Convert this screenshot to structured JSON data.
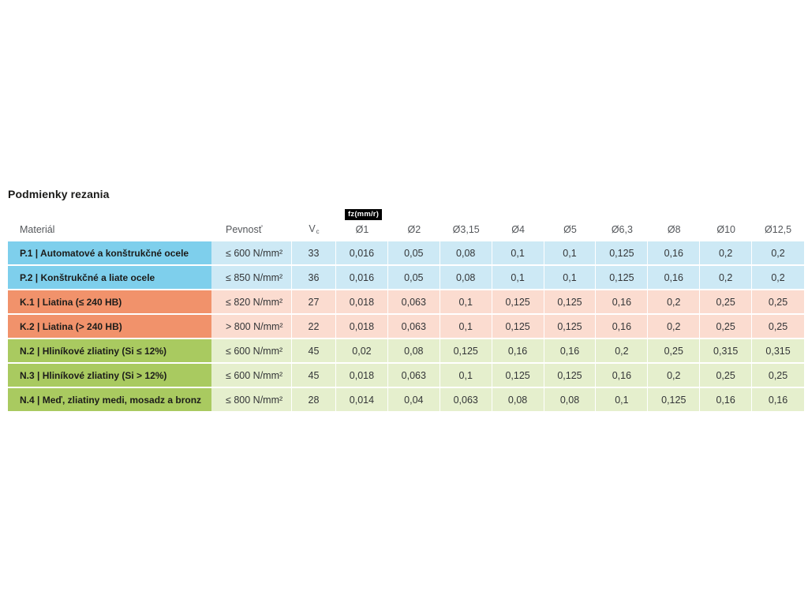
{
  "page": {
    "title": "Podmienky rezania"
  },
  "table": {
    "headers": {
      "material": "Materiál",
      "strength": "Pevnosť",
      "vc_main": "V",
      "vc_sub": "c",
      "fz_badge": "fz(mm/r)",
      "diameters": [
        "Ø1",
        "Ø2",
        "Ø3,15",
        "Ø4",
        "Ø5",
        "Ø6,3",
        "Ø8",
        "Ø10",
        "Ø12,5"
      ]
    },
    "colors": {
      "P": {
        "dark": "#7ecfec",
        "light": "#cde9f5"
      },
      "K": {
        "dark": "#f1926b",
        "light": "#fbdcd0"
      },
      "N": {
        "dark": "#a9ca60",
        "light": "#e5efcd"
      }
    },
    "rows": [
      {
        "group": "P",
        "material": "P.1 | Automatové a konštrukčné ocele",
        "strength": "≤ 600 N/mm²",
        "vc": "33",
        "fz": [
          "0,016",
          "0,05",
          "0,08",
          "0,1",
          "0,1",
          "0,125",
          "0,16",
          "0,2",
          "0,2"
        ]
      },
      {
        "group": "P",
        "material": "P.2 | Konštrukčné a liate ocele",
        "strength": "≤ 850 N/mm²",
        "vc": "36",
        "fz": [
          "0,016",
          "0,05",
          "0,08",
          "0,1",
          "0,1",
          "0,125",
          "0,16",
          "0,2",
          "0,2"
        ]
      },
      {
        "group": "K",
        "material": "K.1 | Liatina (≤ 240 HB)",
        "strength": "≤ 820 N/mm²",
        "vc": "27",
        "fz": [
          "0,018",
          "0,063",
          "0,1",
          "0,125",
          "0,125",
          "0,16",
          "0,2",
          "0,25",
          "0,25"
        ]
      },
      {
        "group": "K",
        "material": "K.2 | Liatina (> 240 HB)",
        "strength": "> 800 N/mm²",
        "vc": "22",
        "fz": [
          "0,018",
          "0,063",
          "0,1",
          "0,125",
          "0,125",
          "0,16",
          "0,2",
          "0,25",
          "0,25"
        ]
      },
      {
        "group": "N",
        "material": "N.2 | Hliníkové zliatiny (Si ≤ 12%)",
        "strength": "≤ 600 N/mm²",
        "vc": "45",
        "fz": [
          "0,02",
          "0,08",
          "0,125",
          "0,16",
          "0,16",
          "0,2",
          "0,25",
          "0,315",
          "0,315"
        ]
      },
      {
        "group": "N",
        "material": "N.3 | Hliníkové zliatiny (Si > 12%)",
        "strength": "≤ 600 N/mm²",
        "vc": "45",
        "fz": [
          "0,018",
          "0,063",
          "0,1",
          "0,125",
          "0,125",
          "0,16",
          "0,2",
          "0,25",
          "0,25"
        ]
      },
      {
        "group": "N",
        "material": "N.4 | Meď, zliatiny medi, mosadz a bronz",
        "strength": "≤ 800 N/mm²",
        "vc": "28",
        "fz": [
          "0,014",
          "0,04",
          "0,063",
          "0,08",
          "0,08",
          "0,1",
          "0,125",
          "0,16",
          "0,16"
        ]
      }
    ]
  }
}
